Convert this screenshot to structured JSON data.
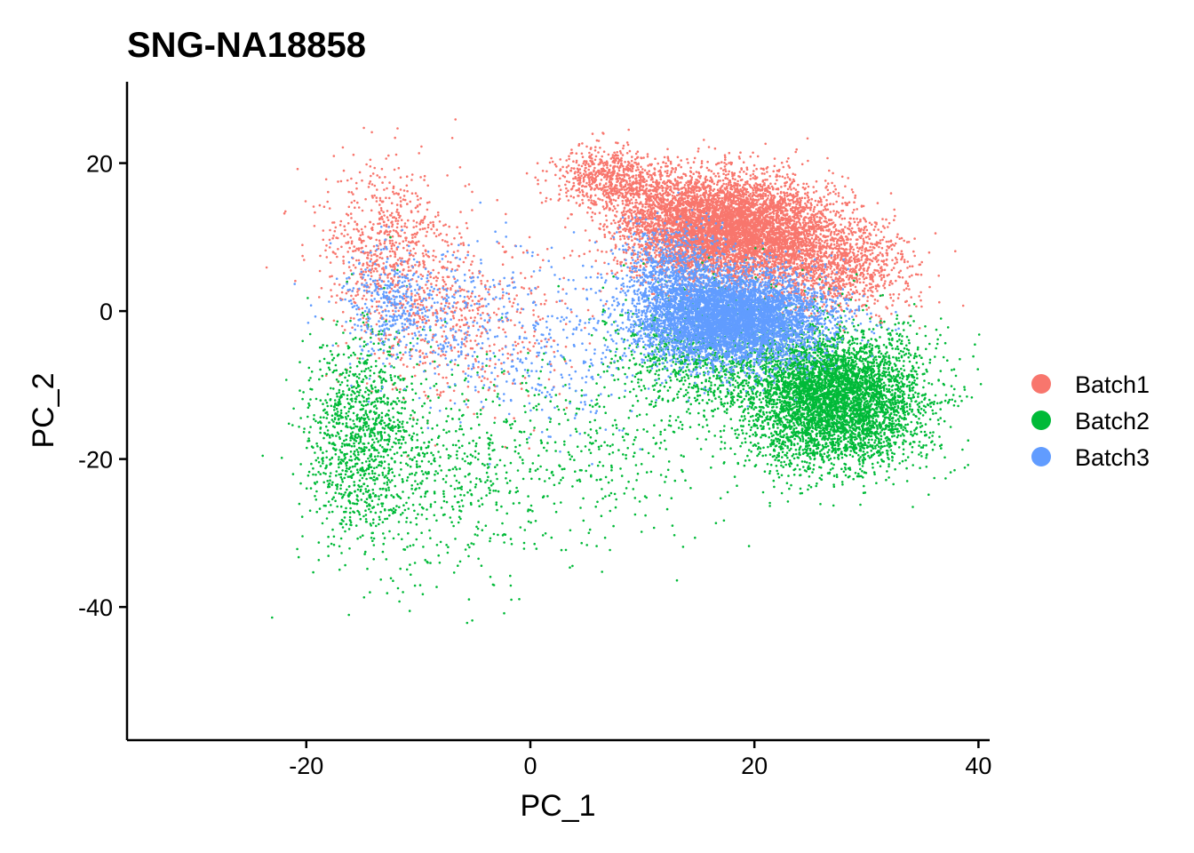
{
  "chart_data": {
    "type": "scatter",
    "title": "SNG-NA18858",
    "xlabel": "PC_1",
    "ylabel": "PC_2",
    "xlim": [
      -36,
      41
    ],
    "ylim": [
      -58,
      31
    ],
    "xticks": [
      -20,
      0,
      20,
      40
    ],
    "yticks": [
      20,
      0,
      -20,
      -40
    ],
    "xtick_labels": [
      "-20",
      "0",
      "20",
      "40"
    ],
    "ytick_labels": [
      "20",
      "0",
      "-20",
      "-40"
    ],
    "grid": false,
    "legend_position": "right",
    "series": [
      {
        "name": "Batch1",
        "color": "#F8766D",
        "approx_points": 9500,
        "clusters": [
          {
            "center": [
              18,
              11
            ],
            "spread": [
              4.5,
              3.5
            ],
            "share": 0.62
          },
          {
            "center": [
              7,
              18
            ],
            "spread": [
              2.5,
              2.0
            ],
            "share": 0.07
          },
          {
            "center": [
              27,
              6
            ],
            "spread": [
              3.5,
              3.0
            ],
            "share": 0.12
          },
          {
            "center": [
              -13,
              8
            ],
            "spread": [
              3.0,
              6.0
            ],
            "share": 0.08
          },
          {
            "center": [
              -6,
              -2
            ],
            "spread": [
              4.5,
              6.0
            ],
            "share": 0.05
          },
          {
            "center": [
              12,
              14
            ],
            "spread": [
              2.5,
              3.0
            ],
            "share": 0.06
          }
        ]
      },
      {
        "name": "Batch2",
        "color": "#00BA38",
        "approx_points": 8000,
        "clusters": [
          {
            "center": [
              27,
              -12
            ],
            "spread": [
              4.0,
              4.5
            ],
            "share": 0.62
          },
          {
            "center": [
              16,
              -6
            ],
            "spread": [
              4.5,
              4.5
            ],
            "share": 0.14
          },
          {
            "center": [
              -15,
              -17
            ],
            "spread": [
              2.5,
              7.0
            ],
            "share": 0.14
          },
          {
            "center": [
              -8,
              -22
            ],
            "spread": [
              5.0,
              8.0
            ],
            "share": 0.06
          },
          {
            "center": [
              5,
              -20
            ],
            "spread": [
              6.0,
              6.0
            ],
            "share": 0.04
          }
        ]
      },
      {
        "name": "Batch3",
        "color": "#619CFF",
        "approx_points": 7500,
        "clusters": [
          {
            "center": [
              18,
              -1
            ],
            "spread": [
              4.0,
              3.0
            ],
            "share": 0.78
          },
          {
            "center": [
              13,
              5
            ],
            "spread": [
              2.5,
              3.5
            ],
            "share": 0.1
          },
          {
            "center": [
              -12,
              1
            ],
            "spread": [
              2.5,
              3.5
            ],
            "share": 0.05
          },
          {
            "center": [
              -6,
              -2
            ],
            "spread": [
              5.0,
              6.0
            ],
            "share": 0.04
          },
          {
            "center": [
              3,
              -6
            ],
            "spread": [
              4.0,
              6.0
            ],
            "share": 0.03
          }
        ]
      }
    ]
  }
}
